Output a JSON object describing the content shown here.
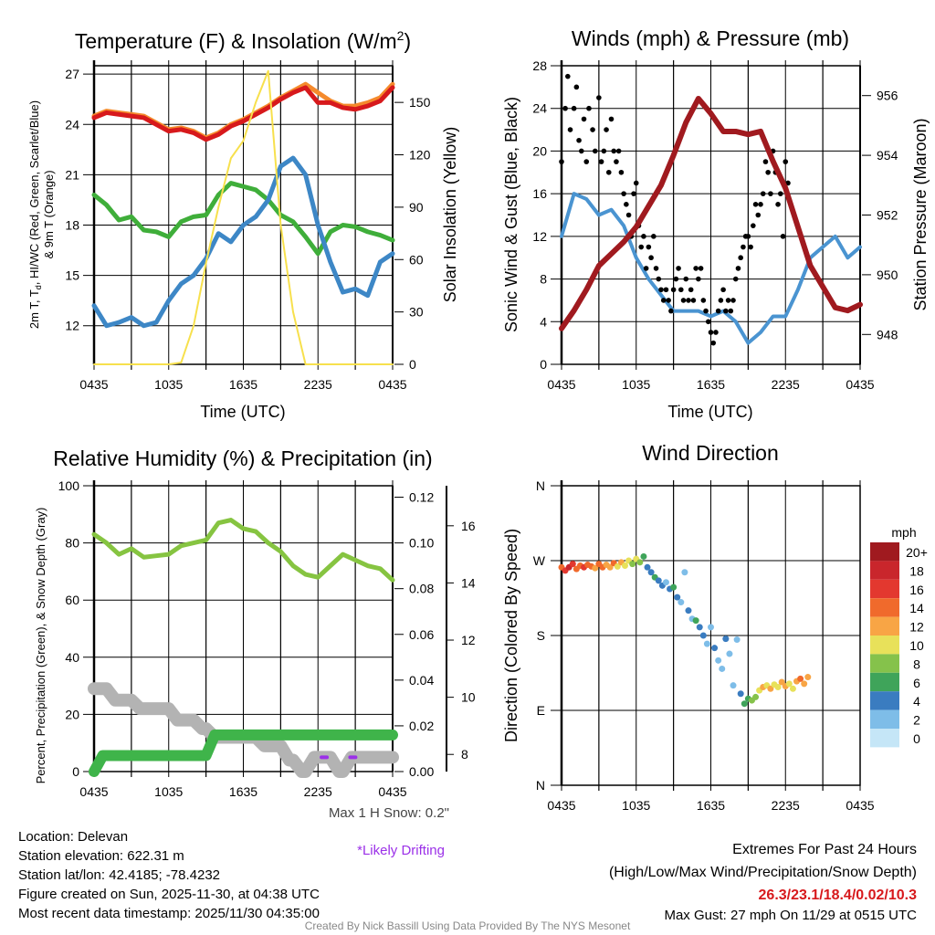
{
  "colors": {
    "temp": "#d7191c",
    "temp9m": "#f58a2c",
    "dewpoint": "#3d87c6",
    "heat_wind_chill": "#3fae3a",
    "solar": "#f7e04d",
    "wind": "#4a94d1",
    "gust": "#000000",
    "pressure": "#a01a1f",
    "rh": "#86c441",
    "precip": "#3fb44a",
    "snow": "#b3b3b3",
    "drifting": "#9b30e8",
    "extremes": "#d7191c",
    "credit": "#888888"
  },
  "chart_data": [
    {
      "type": "line",
      "title": "Temperature (F) & Insolation (W/m",
      "title_sup": "2",
      "title_end": ")",
      "xlabel": "Time (UTC)",
      "ylabel": "2m T, T",
      "ylabel_sub": "d",
      "ylabel_rest": ", HI/WC (Red, Green, Scarlet/Blue)",
      "ylabel2": "& 9m T (Orange)",
      "y2label": "Solar Insolation (Yellow)",
      "x_hours_from_start": [
        0,
        1,
        2,
        3,
        4,
        5,
        6,
        7,
        8,
        9,
        10,
        11,
        12,
        13,
        14,
        15,
        16,
        17,
        18,
        19,
        20,
        21,
        22,
        23,
        24
      ],
      "xticks": [
        "0435",
        "1035",
        "1635",
        "2235",
        "0435"
      ],
      "yticks": [
        12,
        15,
        18,
        21,
        24,
        27
      ],
      "y2ticks": [
        0,
        30,
        60,
        90,
        120,
        150
      ],
      "ylim": [
        9.7,
        27.5
      ],
      "y2lim": [
        0,
        171
      ],
      "series": [
        {
          "name": "9m T",
          "axis": "left",
          "color_key": "temp9m",
          "values": [
            24.5,
            24.8,
            24.7,
            24.6,
            24.5,
            24.1,
            23.7,
            23.8,
            23.6,
            23.2,
            23.5,
            24.0,
            24.3,
            24.7,
            25.1,
            25.6,
            26.0,
            26.4,
            25.9,
            25.4,
            25.1,
            25.1,
            25.3,
            25.6,
            26.4
          ]
        },
        {
          "name": "2m T",
          "axis": "left",
          "color_key": "temp",
          "values": [
            24.4,
            24.7,
            24.6,
            24.5,
            24.4,
            24.0,
            23.6,
            23.7,
            23.5,
            23.1,
            23.4,
            23.9,
            24.2,
            24.6,
            25.0,
            25.5,
            25.9,
            26.2,
            25.3,
            25.3,
            25.0,
            24.9,
            25.1,
            25.4,
            26.2
          ]
        },
        {
          "name": "HI/WC",
          "axis": "left",
          "color_key": "heat_wind_chill",
          "values": [
            19.8,
            19.2,
            18.3,
            18.5,
            17.7,
            17.6,
            17.3,
            18.2,
            18.5,
            18.6,
            19.8,
            20.5,
            20.3,
            20.1,
            19.5,
            18.6,
            18.2,
            17.3,
            16.3,
            17.6,
            18.0,
            17.9,
            17.6,
            17.4,
            17.1
          ]
        },
        {
          "name": "Dewpoint",
          "axis": "left",
          "color_key": "dewpoint",
          "values": [
            13.2,
            12.0,
            12.2,
            12.5,
            12.0,
            12.2,
            13.5,
            14.5,
            15.0,
            16.0,
            17.5,
            17.0,
            18.0,
            18.5,
            19.5,
            21.5,
            22.0,
            21.0,
            18.0,
            15.8,
            14.0,
            14.2,
            13.8,
            15.8,
            16.3
          ]
        },
        {
          "name": "Solar",
          "axis": "right",
          "color_key": "solar",
          "values": [
            0,
            0,
            0,
            0,
            0,
            0,
            0,
            1,
            22,
            58,
            90,
            118,
            128,
            150,
            168,
            80,
            30,
            0,
            0,
            0,
            0,
            0,
            0,
            0,
            0
          ]
        }
      ]
    },
    {
      "type": "line+scatter",
      "title": "Winds (mph) & Pressure (mb)",
      "xlabel": "Time (UTC)",
      "ylabel": "Sonic Wind & Gust (Blue, Black)",
      "y2label": "Station Pressure (Maroon)",
      "x_hours_from_start": [
        0,
        1,
        2,
        3,
        4,
        5,
        6,
        7,
        8,
        9,
        10,
        11,
        12,
        13,
        14,
        15,
        16,
        17,
        18,
        19,
        20,
        21,
        22,
        23,
        24
      ],
      "xticks": [
        "0435",
        "1035",
        "1635",
        "2235",
        "0435"
      ],
      "yticks": [
        0,
        4,
        8,
        12,
        16,
        20,
        24,
        28
      ],
      "y2ticks": [
        948,
        950,
        952,
        954,
        956
      ],
      "ylim": [
        0,
        28
      ],
      "y2lim": [
        947,
        957
      ],
      "series": [
        {
          "name": "Sonic Wind",
          "axis": "left",
          "color_key": "wind",
          "values": [
            12,
            16,
            15.5,
            14,
            14.5,
            13,
            10,
            8,
            6.5,
            5,
            5,
            5,
            4.5,
            5,
            4,
            2,
            3,
            4.5,
            4.5,
            7,
            10,
            11,
            12,
            10,
            11
          ]
        },
        {
          "name": "Station Pressure",
          "axis": "right",
          "color_key": "pressure",
          "values": [
            948.2,
            948.8,
            949.5,
            950.3,
            950.7,
            951.1,
            951.6,
            952.3,
            953.0,
            954.0,
            955.1,
            955.9,
            955.4,
            954.8,
            954.8,
            954.7,
            954.8,
            953.8,
            952.9,
            951.6,
            950.3,
            949.6,
            948.9,
            948.8,
            949.0
          ]
        }
      ],
      "gusts": [
        [
          0,
          19
        ],
        [
          0.3,
          24
        ],
        [
          0.5,
          27
        ],
        [
          0.7,
          22
        ],
        [
          1,
          24
        ],
        [
          1.2,
          26
        ],
        [
          1.4,
          21
        ],
        [
          1.6,
          20
        ],
        [
          1.8,
          23
        ],
        [
          2,
          19
        ],
        [
          2.2,
          24
        ],
        [
          2.5,
          22
        ],
        [
          2.7,
          20
        ],
        [
          3,
          25
        ],
        [
          3.2,
          19
        ],
        [
          3.4,
          20
        ],
        [
          3.6,
          22
        ],
        [
          3.8,
          18
        ],
        [
          4,
          23
        ],
        [
          4.2,
          20
        ],
        [
          4.4,
          19
        ],
        [
          4.6,
          20
        ],
        [
          4.8,
          18
        ],
        [
          5,
          16
        ],
        [
          5.2,
          15
        ],
        [
          5.4,
          14
        ],
        [
          5.6,
          12
        ],
        [
          5.8,
          16
        ],
        [
          6,
          17
        ],
        [
          6.2,
          13
        ],
        [
          6.4,
          11
        ],
        [
          6.6,
          12
        ],
        [
          6.8,
          9
        ],
        [
          7,
          11
        ],
        [
          7.2,
          10
        ],
        [
          7.4,
          12
        ],
        [
          7.6,
          9
        ],
        [
          7.8,
          8
        ],
        [
          8,
          7
        ],
        [
          8.2,
          6
        ],
        [
          8.4,
          7
        ],
        [
          8.6,
          6
        ],
        [
          8.8,
          5
        ],
        [
          9,
          7
        ],
        [
          9.2,
          8
        ],
        [
          9.4,
          9
        ],
        [
          9.6,
          7
        ],
        [
          9.8,
          6
        ],
        [
          10,
          8
        ],
        [
          10.2,
          6
        ],
        [
          10.4,
          7
        ],
        [
          10.6,
          6
        ],
        [
          10.8,
          9
        ],
        [
          11,
          8
        ],
        [
          11.2,
          9
        ],
        [
          11.4,
          6
        ],
        [
          11.6,
          5
        ],
        [
          11.8,
          4
        ],
        [
          12,
          3
        ],
        [
          12.2,
          2
        ],
        [
          12.4,
          3
        ],
        [
          12.6,
          5
        ],
        [
          12.8,
          6
        ],
        [
          13,
          7
        ],
        [
          13.2,
          5
        ],
        [
          13.4,
          6
        ],
        [
          13.6,
          5
        ],
        [
          13.8,
          6
        ],
        [
          14,
          8
        ],
        [
          14.2,
          9
        ],
        [
          14.4,
          10
        ],
        [
          14.6,
          11
        ],
        [
          14.8,
          12
        ],
        [
          15,
          12
        ],
        [
          15.2,
          11
        ],
        [
          15.4,
          13
        ],
        [
          15.6,
          15
        ],
        [
          15.8,
          14
        ],
        [
          16,
          15
        ],
        [
          16.2,
          16
        ],
        [
          16.4,
          19
        ],
        [
          16.6,
          18
        ],
        [
          16.8,
          16
        ],
        [
          17,
          20
        ],
        [
          17.2,
          18
        ],
        [
          17.4,
          15
        ],
        [
          17.6,
          16
        ],
        [
          17.8,
          12
        ],
        [
          18,
          19
        ],
        [
          18.2,
          17
        ]
      ],
      "gust_x_note": "hours from start (values 0-24 span)"
    },
    {
      "type": "line",
      "title": "Relative Humidity (%) & Precipitation (in)",
      "ylabel": "Percent, Precipitation (Green), & Snow Depth (Gray)",
      "x_hours_from_start": [
        0,
        1,
        2,
        3,
        4,
        5,
        6,
        7,
        8,
        9,
        10,
        11,
        12,
        13,
        14,
        15,
        16,
        17,
        18,
        19,
        20,
        21,
        22,
        23,
        24
      ],
      "xticks": [
        "0435",
        "1035",
        "1635",
        "2235",
        "0435"
      ],
      "yticks": [
        0,
        20,
        40,
        60,
        80,
        100
      ],
      "y2ticks": [
        "0.00",
        "0.02",
        "0.04",
        "0.06",
        "0.08",
        "0.10",
        "0.12"
      ],
      "y3ticks": [
        8,
        10,
        12,
        14,
        16
      ],
      "ylim": [
        0,
        100
      ],
      "y2lim": [
        0,
        0.125
      ],
      "y3lim": [
        7.4,
        17.4
      ],
      "series": [
        {
          "name": "Relative Humidity",
          "axis": "left",
          "color_key": "rh",
          "values": [
            83,
            80,
            76,
            78,
            75,
            75.5,
            76,
            79,
            80,
            81,
            87,
            88,
            85,
            84,
            80,
            77,
            72,
            69,
            68,
            72,
            76,
            74,
            72,
            71,
            67
          ]
        },
        {
          "name": "Precipitation",
          "axis": "right",
          "color_key": "precip",
          "values": [
            0,
            0.007,
            0.007,
            0.007,
            0.007,
            0.007,
            0.007,
            0.007,
            0.007,
            0.007,
            0.016,
            0.016,
            0.016,
            0.016,
            0.016,
            0.016,
            0.016,
            0.016,
            0.016,
            0.016,
            0.016,
            0.016,
            0.016,
            0.016,
            0.016
          ]
        },
        {
          "name": "Snow Depth",
          "axis": "third",
          "color_key": "snow",
          "values": [
            10.3,
            10.3,
            9.9,
            9.9,
            9.6,
            9.6,
            9.6,
            9.2,
            9.2,
            8.9,
            8.6,
            8.6,
            8.6,
            8.6,
            8.3,
            8.3,
            7.8,
            7.4,
            7.9,
            7.9,
            7.4,
            7.9,
            7.9,
            7.9,
            7.9
          ]
        }
      ],
      "drifting_hours": [
        18.5,
        20.8
      ]
    },
    {
      "type": "scatter",
      "title": "Wind Direction",
      "ylabel": "Direction (Colored By Speed)",
      "xticks": [
        "0435",
        "1035",
        "1635",
        "2235",
        "0435"
      ],
      "yticks": [
        "N",
        "E",
        "S",
        "W",
        "N"
      ],
      "ylim": [
        0,
        360
      ],
      "colorbar_title": "mph",
      "colorbar_labels": [
        "20+",
        "18",
        "16",
        "14",
        "12",
        "10",
        "8",
        "6",
        "4",
        "2",
        "0"
      ],
      "colorbar_colors": [
        "#a01a1f",
        "#c9262c",
        "#e3382f",
        "#f06a2c",
        "#f8a545",
        "#e8e15a",
        "#85c24b",
        "#3fa45a",
        "#3a7cc0",
        "#7ebde8",
        "#c5e6f7"
      ],
      "points": [
        [
          0,
          262,
          14
        ],
        [
          0.3,
          258,
          16
        ],
        [
          0.6,
          262,
          18
        ],
        [
          0.9,
          266,
          17
        ],
        [
          1.2,
          260,
          15
        ],
        [
          1.5,
          264,
          14
        ],
        [
          1.8,
          262,
          16
        ],
        [
          2.1,
          265,
          15
        ],
        [
          2.4,
          263,
          14
        ],
        [
          2.7,
          261,
          13
        ],
        [
          3,
          266,
          15
        ],
        [
          3.3,
          262,
          14
        ],
        [
          3.6,
          265,
          12
        ],
        [
          3.9,
          262,
          13
        ],
        [
          4.2,
          267,
          14
        ],
        [
          4.5,
          263,
          11
        ],
        [
          4.8,
          268,
          12
        ],
        [
          5.1,
          264,
          10
        ],
        [
          5.4,
          270,
          11
        ],
        [
          5.7,
          266,
          9
        ],
        [
          6,
          272,
          10
        ],
        [
          6.3,
          268,
          8
        ],
        [
          6.6,
          275,
          7
        ],
        [
          6.9,
          262,
          5
        ],
        [
          7.2,
          256,
          4
        ],
        [
          7.5,
          250,
          6
        ],
        [
          7.8,
          246,
          4
        ],
        [
          8.1,
          240,
          5
        ],
        [
          8.4,
          244,
          3
        ],
        [
          8.7,
          236,
          4
        ],
        [
          9,
          238,
          6
        ],
        [
          9.3,
          226,
          5
        ],
        [
          9.6,
          220,
          3
        ],
        [
          9.9,
          256,
          2
        ],
        [
          10.2,
          210,
          4
        ],
        [
          10.5,
          200,
          3
        ],
        [
          10.8,
          198,
          7
        ],
        [
          11.1,
          190,
          5
        ],
        [
          11.4,
          180,
          4
        ],
        [
          11.7,
          170,
          3
        ],
        [
          12,
          190,
          2
        ],
        [
          12.3,
          165,
          4
        ],
        [
          12.6,
          150,
          2
        ],
        [
          12.9,
          140,
          3
        ],
        [
          13.2,
          176,
          4
        ],
        [
          13.5,
          158,
          2
        ],
        [
          13.8,
          120,
          3
        ],
        [
          14.1,
          175,
          2
        ],
        [
          14.4,
          110,
          5
        ],
        [
          14.7,
          98,
          6
        ],
        [
          15,
          104,
          7
        ],
        [
          15.3,
          102,
          8
        ],
        [
          15.6,
          106,
          9
        ],
        [
          15.9,
          114,
          11
        ],
        [
          16.2,
          118,
          12
        ],
        [
          16.5,
          120,
          10
        ],
        [
          16.8,
          116,
          12
        ],
        [
          17.1,
          121,
          11
        ],
        [
          17.4,
          118,
          10
        ],
        [
          17.7,
          124,
          12
        ],
        [
          18,
          119,
          13
        ],
        [
          18.3,
          122,
          11
        ],
        [
          18.6,
          116,
          10
        ],
        [
          18.9,
          125,
          12
        ],
        [
          19.2,
          128,
          14
        ],
        [
          19.5,
          122,
          13
        ],
        [
          19.8,
          130,
          12
        ]
      ],
      "points_note": "[hours from start, direction degrees, speed mph]"
    }
  ],
  "footer": {
    "location": "Location: Delevan",
    "elevation": "Station elevation: 622.31 m",
    "latlon": "Station lat/lon: 42.4185; -78.4232",
    "created": "Figure created on Sun, 2025-11-30, at 04:38 UTC",
    "recent": "Most recent data timestamp: 2025/11/30 04:35:00",
    "max_snow": "Max 1 H Snow: 0.2\"",
    "drifting": "*Likely Drifting",
    "extremes_title": "Extremes For Past 24 Hours",
    "extremes_desc": "(High/Low/Max Wind/Precipitation/Snow Depth)",
    "extremes_values": "26.3/23.1/18.4/0.02/10.3",
    "max_gust": "Max Gust: 27 mph On 11/29 at 0515 UTC",
    "credit": "Created By Nick Bassill Using Data Provided By The NYS Mesonet"
  }
}
